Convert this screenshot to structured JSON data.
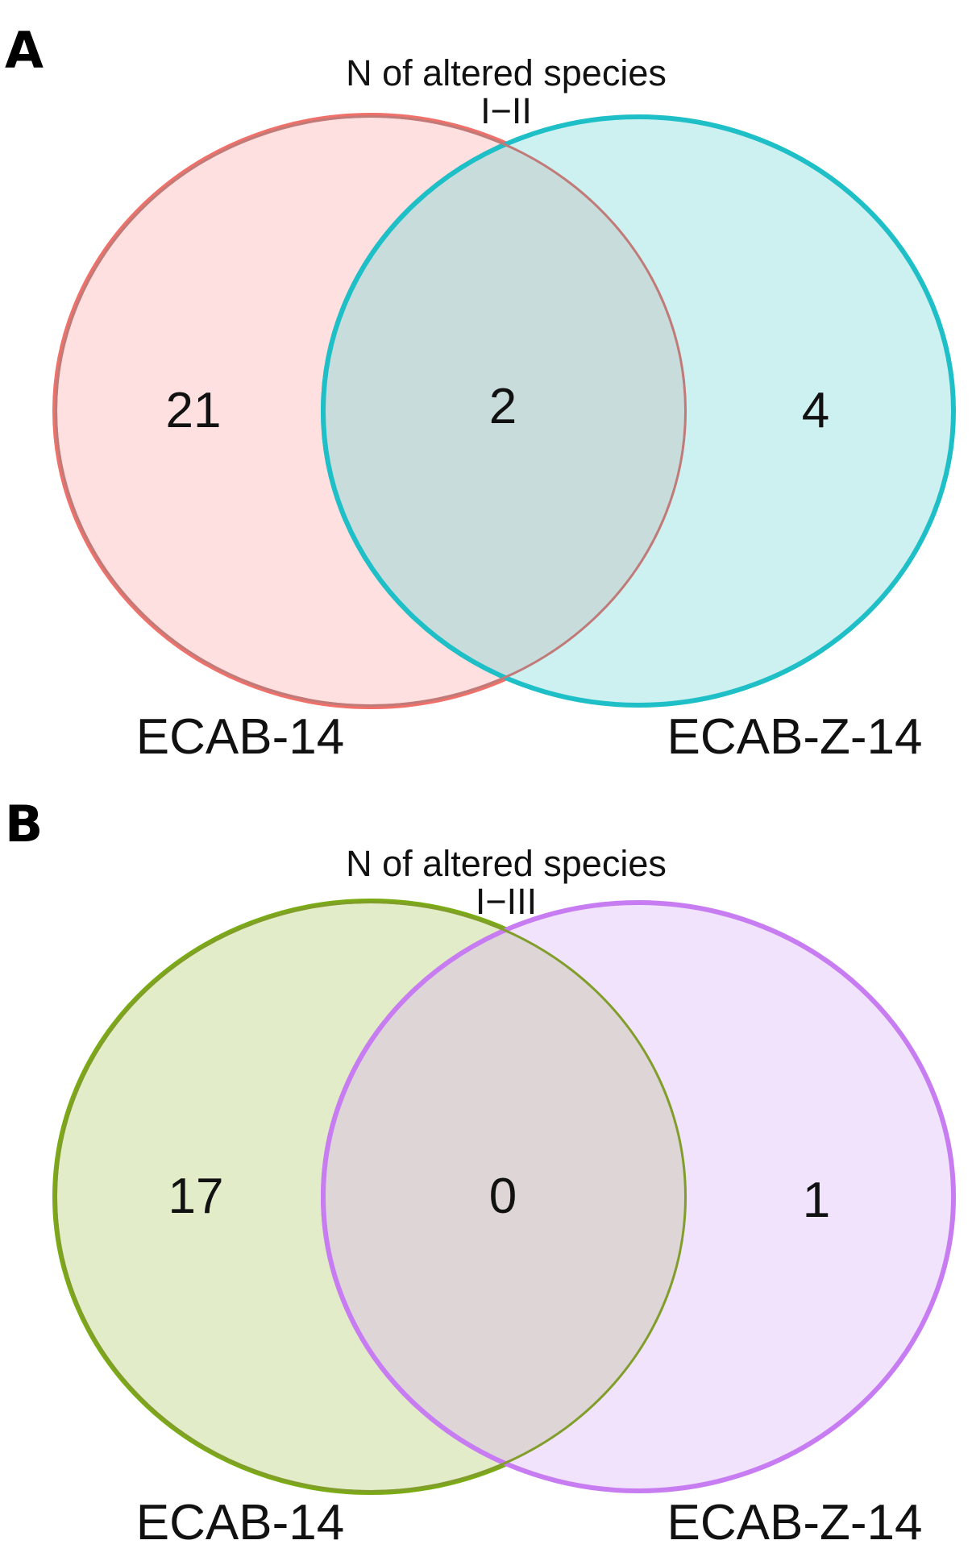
{
  "panels": [
    {
      "letter": "A",
      "title_line1": "N of altered species",
      "title_line2": "I−II",
      "left_set": {
        "label": "ECAB-14",
        "count": "21",
        "stroke": "#f0706a",
        "fill": "#fde0df"
      },
      "right_set": {
        "label": "ECAB-Z-14",
        "count": "4",
        "stroke": "#1ebfc6",
        "fill": "#cdf0f1"
      },
      "intersection_count": "2",
      "intersection_fill": "#c9dcdc",
      "intersection_stroke": "#c07a78"
    },
    {
      "letter": "B",
      "title_line1": "N of altered species",
      "title_line2": "I−III",
      "left_set": {
        "label": "ECAB-14",
        "count": "17",
        "stroke": "#7bab14",
        "fill": "#e3ecc8"
      },
      "right_set": {
        "label": "ECAB-Z-14",
        "count": "1",
        "stroke": "#c77cf2",
        "fill": "#f1e3fc"
      },
      "intersection_count": "0",
      "intersection_fill": "#ddd5d6",
      "intersection_stroke": "#819d2a"
    }
  ]
}
